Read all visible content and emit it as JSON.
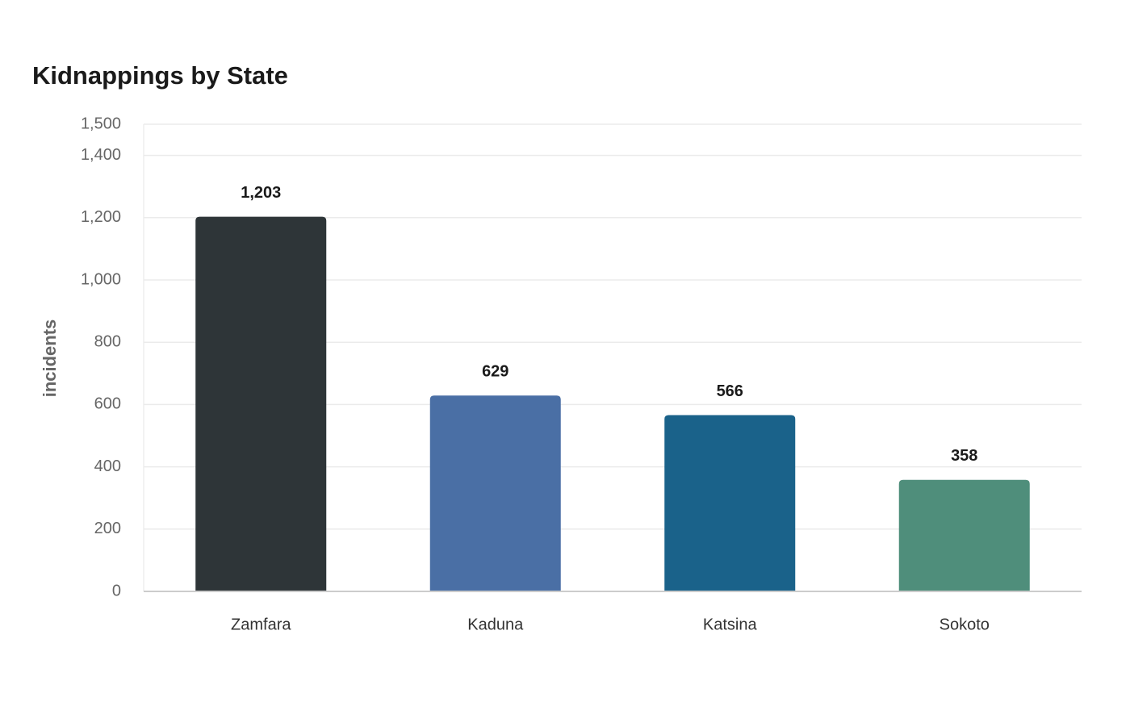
{
  "chart_data": {
    "type": "bar",
    "title": "Kidnappings by State",
    "y_label": "incidents",
    "categories": [
      "Zamfara",
      "Kaduna",
      "Katsina",
      "Sokoto"
    ],
    "values": [
      1203,
      629,
      566,
      358
    ],
    "value_labels": [
      "1,203",
      "629",
      "566",
      "358"
    ],
    "colors": [
      "#2e3538",
      "#4a6fa5",
      "#1a628a",
      "#4f8e7b"
    ],
    "ylim": [
      0,
      1500
    ],
    "yticks": [
      0,
      200,
      400,
      600,
      800,
      {
        "value": 1000,
        "label": "1,000"
      },
      {
        "value": 1200,
        "label": "1,200"
      },
      {
        "value": 1400,
        "label": "1,400"
      },
      {
        "value": 1500,
        "label": "1,500"
      }
    ],
    "grid": true
  }
}
